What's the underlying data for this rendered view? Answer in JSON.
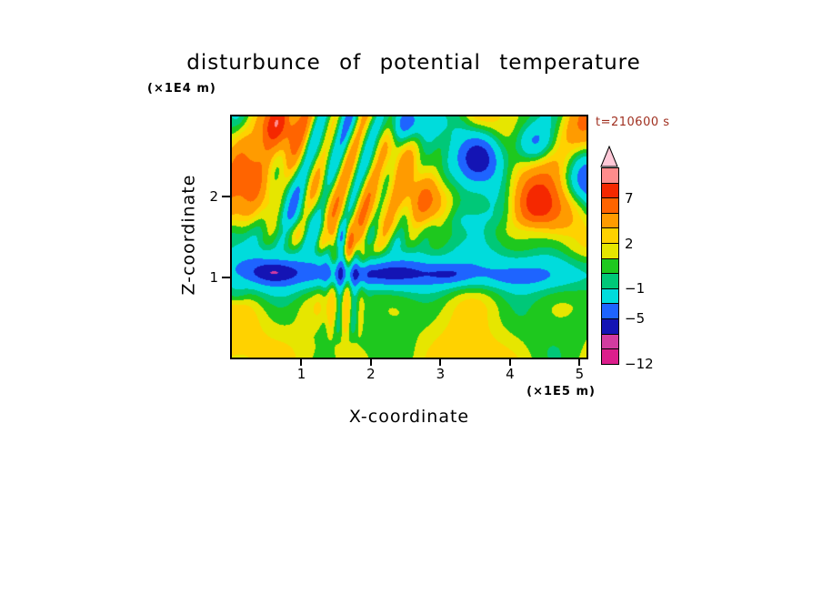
{
  "colors": {
    "time_label": "#a03020",
    "axis": "#000000",
    "background": "#ffffff"
  },
  "chart_data": {
    "type": "heatmap",
    "title": "disturbunce of potential temperature",
    "time_label": "t=210600 s",
    "x_axis": {
      "label": "X-coordinate",
      "unit": "(×1E5 m)",
      "ticks": [
        1,
        2,
        3,
        4,
        5
      ],
      "range": [
        0,
        5.1
      ]
    },
    "y_axis": {
      "label": "Z-coordinate",
      "unit": "(×1E4 m)",
      "ticks": [
        1,
        2
      ],
      "range": [
        0,
        3
      ]
    },
    "colorbar": {
      "boundaries": [
        -12,
        -9,
        -7,
        -5,
        -3,
        -1,
        0,
        1,
        2,
        3,
        5,
        7,
        9,
        11
      ],
      "colors": [
        "#dc1e8c",
        "#d23ca0",
        "#1414b4",
        "#1e64ff",
        "#00dcdc",
        "#00c878",
        "#1ec81e",
        "#e6e600",
        "#ffd200",
        "#ff9b00",
        "#ff6400",
        "#f52800",
        "#ff8c8c"
      ],
      "over_color": "#ffc8d7",
      "labels": [
        {
          "text": "7",
          "level": 7
        },
        {
          "text": "2",
          "level": 2
        },
        {
          "text": "−1",
          "level": -1
        },
        {
          "text": "−5",
          "level": -5
        },
        {
          "text": "−12",
          "level": -12
        }
      ]
    },
    "field_model": {
      "base": {
        "low": 1.55,
        "band": {
          "c": 1.05,
          "w": 0.26,
          "a": -3.8
        },
        "trans": {
          "c": 1.5,
          "w": 0.33,
          "a": -0.9
        }
      },
      "waves": [
        {
          "ax": 2.1,
          "px": 0.7,
          "az": 2.6,
          "pz": 1.1,
          "amp": 1.15,
          "zmin": -1,
          "zmax": 9
        },
        {
          "ax": 3.4,
          "px": 2.4,
          "az": 1.8,
          "pz": 0.3,
          "amp": 0.95,
          "zmin": -1,
          "zmax": 9
        },
        {
          "ax": 5.6,
          "px": 4.0,
          "az": 4.1,
          "pz": 2.2,
          "amp": 0.75,
          "zmin": -1,
          "zmax": 9
        },
        {
          "ax": 2.7,
          "px": -1.0,
          "az": 2.0,
          "pz": 0.5,
          "amp": 2.0,
          "zmin": 1.45,
          "zmax": 9
        },
        {
          "ax": 4.4,
          "px": 1.2,
          "az": 2.9,
          "pz": 2.0,
          "amp": 1.6,
          "zmin": 1.5,
          "zmax": 9
        },
        {
          "ax": 8.3,
          "px": 0.4,
          "az": 5.2,
          "pz": 1.0,
          "amp": 0.9,
          "zmin": 1.4,
          "zmax": 9
        }
      ],
      "streaks": [
        {
          "cx": 1.55,
          "sx": 0.95,
          "zmin": 1.2,
          "zmax": 9,
          "kx": 15,
          "kz": 5.5,
          "phase": 2.0,
          "amp": 3.1
        },
        {
          "cx": 1.62,
          "sx": 0.24,
          "zmin": 0.15,
          "zmax": 1.8,
          "kx": 28,
          "kz": 1.5,
          "phase": 0.3,
          "amp": 2.1
        }
      ],
      "blobs": [
        {
          "x": 3.55,
          "z": 2.5,
          "sx": 0.48,
          "sz": 0.33,
          "amp": -6.2
        },
        {
          "x": 4.38,
          "z": 2.68,
          "sx": 0.3,
          "sz": 0.26,
          "amp": -4.6
        },
        {
          "x": 2.6,
          "z": 2.92,
          "sx": 0.5,
          "sz": 0.24,
          "amp": -4.8
        },
        {
          "x": 5.05,
          "z": 2.15,
          "sx": 0.32,
          "sz": 0.3,
          "amp": -3.4
        },
        {
          "x": 4.62,
          "z": 1.88,
          "sx": 0.5,
          "sz": 0.3,
          "amp": 3.2
        },
        {
          "x": 2.95,
          "z": 1.95,
          "sx": 0.45,
          "sz": 0.27,
          "amp": 2.8
        },
        {
          "x": 5.02,
          "z": 2.78,
          "sx": 0.38,
          "sz": 0.3,
          "amp": 3.4
        },
        {
          "x": 0.68,
          "z": 2.86,
          "sx": 0.4,
          "sz": 0.26,
          "amp": 3.0
        },
        {
          "x": 0.42,
          "z": 2.15,
          "sx": 0.45,
          "sz": 0.5,
          "amp": 2.2
        },
        {
          "x": 2.0,
          "z": 1.04,
          "sx": 0.85,
          "sz": 0.15,
          "amp": -3.8
        },
        {
          "x": 0.6,
          "z": 1.06,
          "sx": 0.32,
          "sz": 0.13,
          "amp": -3.2
        },
        {
          "x": 3.15,
          "z": 1.03,
          "sx": 0.3,
          "sz": 0.11,
          "amp": -2.2
        },
        {
          "x": 4.1,
          "z": 1.0,
          "sx": 0.45,
          "sz": 0.1,
          "amp": -1.6
        },
        {
          "x": 3.6,
          "z": 0.45,
          "sx": 0.45,
          "sz": 0.3,
          "amp": -1.2
        },
        {
          "x": 1.3,
          "z": 0.35,
          "sx": 0.3,
          "sz": 0.2,
          "amp": -1.0
        },
        {
          "x": 0.05,
          "z": 0.78,
          "sx": 0.18,
          "sz": 0.12,
          "amp": -1.6
        }
      ]
    }
  }
}
